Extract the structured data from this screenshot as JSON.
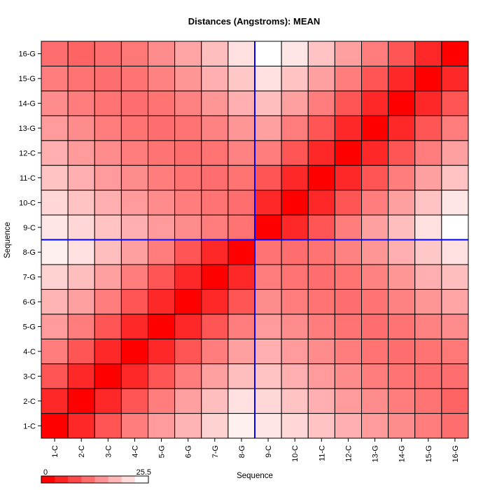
{
  "chart_data": {
    "type": "heatmap",
    "title": "Distances (Angstroms):  MEAN",
    "xlabel": "Sequence",
    "ylabel": "Sequence",
    "labels": [
      "1-C",
      "2-C",
      "3-C",
      "4-C",
      "5-G",
      "6-G",
      "7-G",
      "8-G",
      "9-C",
      "10-C",
      "11-C",
      "12-C",
      "13-G",
      "14-G",
      "15-G",
      "16-G"
    ],
    "color_range": [
      0,
      25.5
    ],
    "color_low": "#ff0000",
    "color_high": "#ffffff",
    "divider_color": "#0000ff",
    "divider_after_index": 8,
    "legend": {
      "min_label": "0",
      "max_label": "25.5",
      "steps": 8
    },
    "matrix": [
      [
        0,
        4.0,
        8.5,
        12.5,
        15.5,
        18.0,
        21.0,
        24.0,
        23.0,
        21.5,
        19.5,
        17.5,
        15.5,
        14.0,
        12.5,
        11.0
      ],
      [
        4.0,
        0,
        4.0,
        8.5,
        12.5,
        16.0,
        19.0,
        22.5,
        21.5,
        19.5,
        17.5,
        15.5,
        14.0,
        12.5,
        11.5,
        10.0
      ],
      [
        8.5,
        4.0,
        0,
        4.0,
        8.5,
        12.5,
        16.0,
        19.0,
        19.5,
        17.5,
        15.5,
        14.0,
        12.5,
        11.5,
        11.0,
        11.0
      ],
      [
        12.5,
        8.5,
        4.0,
        0,
        4.0,
        8.5,
        12.5,
        16.0,
        17.5,
        15.5,
        14.0,
        12.5,
        11.5,
        11.0,
        11.5,
        12.0
      ],
      [
        15.5,
        12.5,
        8.5,
        4.0,
        0,
        4.0,
        8.5,
        12.5,
        15.5,
        14.0,
        12.5,
        11.5,
        11.0,
        11.5,
        13.0,
        14.0
      ],
      [
        18.0,
        16.0,
        12.5,
        8.5,
        4.0,
        0,
        4.0,
        8.5,
        14.0,
        12.5,
        11.5,
        11.0,
        11.5,
        13.0,
        15.0,
        16.5
      ],
      [
        21.0,
        19.0,
        16.0,
        12.5,
        8.5,
        4.0,
        0,
        4.0,
        12.5,
        11.5,
        11.0,
        11.5,
        13.0,
        15.0,
        17.5,
        19.0
      ],
      [
        24.0,
        22.5,
        19.0,
        16.0,
        12.5,
        8.5,
        4.0,
        0,
        11.5,
        11.0,
        11.5,
        13.0,
        15.0,
        17.5,
        20.0,
        22.5
      ],
      [
        23.0,
        21.5,
        19.5,
        17.5,
        15.5,
        14.0,
        12.5,
        11.5,
        0,
        4.0,
        8.5,
        12.5,
        16.0,
        19.0,
        22.5,
        25.5
      ],
      [
        21.5,
        19.5,
        17.5,
        15.5,
        14.0,
        12.5,
        11.5,
        11.0,
        4.0,
        0,
        4.0,
        8.5,
        12.5,
        16.0,
        19.5,
        23.0
      ],
      [
        19.5,
        17.5,
        15.5,
        14.0,
        12.5,
        11.5,
        11.0,
        11.5,
        8.5,
        4.0,
        0,
        4.0,
        8.5,
        12.5,
        16.0,
        19.5
      ],
      [
        17.5,
        15.5,
        14.0,
        12.5,
        11.5,
        11.0,
        11.5,
        13.0,
        12.5,
        8.5,
        4.0,
        0,
        4.0,
        8.5,
        12.5,
        16.0
      ],
      [
        15.5,
        14.0,
        12.5,
        11.5,
        11.0,
        11.5,
        13.0,
        15.0,
        16.0,
        12.5,
        8.5,
        4.0,
        0,
        4.0,
        8.5,
        12.5
      ],
      [
        14.0,
        12.5,
        11.5,
        11.0,
        11.5,
        13.0,
        15.0,
        17.5,
        19.0,
        16.0,
        12.5,
        8.5,
        4.0,
        0,
        4.0,
        8.5
      ],
      [
        12.5,
        11.5,
        11.0,
        11.5,
        13.0,
        15.0,
        17.5,
        20.0,
        22.5,
        19.5,
        16.0,
        12.5,
        8.5,
        4.0,
        0,
        4.0
      ],
      [
        11.0,
        10.0,
        11.0,
        12.0,
        14.0,
        16.5,
        19.0,
        22.5,
        25.5,
        23.0,
        19.5,
        16.0,
        12.5,
        8.5,
        4.0,
        0
      ]
    ]
  }
}
